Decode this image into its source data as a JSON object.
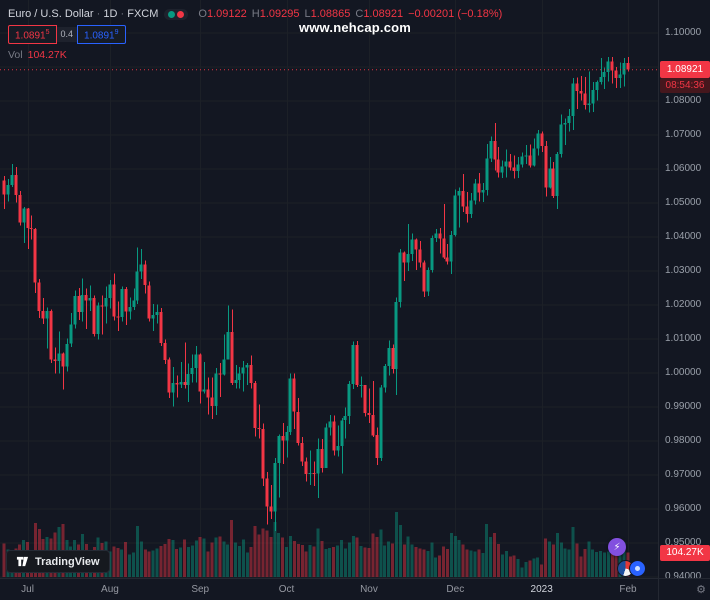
{
  "legend": {
    "symbol": "Euro / U.S. Dollar",
    "separator": "·",
    "interval": "1D",
    "exchange": "FXCM",
    "ohlc": {
      "o_label": "O",
      "o": "1.09122",
      "h_label": "H",
      "h": "1.09295",
      "l_label": "L",
      "l": "1.08865",
      "c_label": "C",
      "c": "1.08921",
      "change": "−0.00201 (−0.18%)"
    },
    "bid": {
      "main": "1.0891",
      "sup": "5"
    },
    "spread": "0.4",
    "ask": {
      "main": "1.0891",
      "sup": "9"
    },
    "vol_label": "Vol",
    "vol_value": "104.27K"
  },
  "watermark": "www.nehcap.com",
  "badges": {
    "price": "1.08921",
    "countdown": "08:54:36",
    "volume": "104.27K"
  },
  "footer": {
    "logo_text": "TradingView"
  },
  "icons": {
    "lightning": "⚡",
    "gear": "⚙"
  },
  "colors": {
    "up": "#089981",
    "down": "#f23645",
    "blue": "#2962ff",
    "purple": "#8250df"
  },
  "chart_data": {
    "type": "candlestick+volume",
    "title": "Euro / U.S. Dollar · 1D · FXCM",
    "legend_position": "top-left",
    "grid": true,
    "ylim": [
      0.94,
      1.1
    ],
    "y_ticks": [
      "1.10000",
      "1.09000",
      "1.08000",
      "1.07000",
      "1.06000",
      "1.05000",
      "1.04000",
      "1.03000",
      "1.02000",
      "1.01000",
      "1.00000",
      "0.99000",
      "0.98000",
      "0.97000",
      "0.96000",
      "0.95000",
      "0.94000"
    ],
    "x_ticks": [
      {
        "label": "Jul",
        "i": 6
      },
      {
        "label": "Aug",
        "i": 27
      },
      {
        "label": "Sep",
        "i": 50
      },
      {
        "label": "Oct",
        "i": 72
      },
      {
        "label": "Nov",
        "i": 93
      },
      {
        "label": "Dec",
        "i": 115
      },
      {
        "label": "2023",
        "i": 137,
        "year": true
      },
      {
        "label": "Feb",
        "i": 159
      }
    ],
    "last_price": 1.08921,
    "last_volume": 104.27,
    "volume_scale_max": 320,
    "up_color": "#089981",
    "down_color": "#f23645",
    "candles_format": [
      "open",
      "high",
      "low",
      "close",
      "volume_k"
    ],
    "candles": [
      [
        1.0566,
        1.058,
        1.0483,
        1.0525,
        142
      ],
      [
        1.0525,
        1.0571,
        1.0504,
        1.0553,
        118
      ],
      [
        1.0553,
        1.0615,
        1.0547,
        1.0583,
        104
      ],
      [
        1.0583,
        1.0606,
        1.0502,
        1.0523,
        121
      ],
      [
        1.0523,
        1.0536,
        1.0434,
        1.0442,
        139
      ],
      [
        1.0442,
        1.0488,
        1.0382,
        1.0484,
        158
      ],
      [
        1.0484,
        1.0486,
        1.0365,
        1.0426,
        149
      ],
      [
        1.0426,
        1.0463,
        1.0393,
        1.0423,
        87
      ],
      [
        1.0423,
        1.0426,
        1.0235,
        1.0266,
        231
      ],
      [
        1.0266,
        1.0276,
        1.0162,
        1.0183,
        204
      ],
      [
        1.0183,
        1.0221,
        1.0144,
        1.016,
        162
      ],
      [
        1.016,
        1.0192,
        1.0072,
        1.0183,
        171
      ],
      [
        1.0183,
        1.0187,
        1.003,
        1.004,
        165
      ],
      [
        1.004,
        1.0075,
        0.9998,
        1.0036,
        189
      ],
      [
        1.0036,
        1.0122,
        0.9998,
        1.0058,
        214
      ],
      [
        1.0058,
        1.006,
        0.9952,
        1.0019,
        226
      ],
      [
        1.0019,
        1.0101,
        1.0005,
        1.0086,
        158
      ],
      [
        1.0086,
        1.0176,
        1.0076,
        1.0142,
        131
      ],
      [
        1.0142,
        1.0242,
        1.0131,
        1.0227,
        157
      ],
      [
        1.0227,
        1.025,
        1.0156,
        1.018,
        139
      ],
      [
        1.018,
        1.0278,
        1.0151,
        1.0229,
        183
      ],
      [
        1.0229,
        1.0249,
        1.013,
        1.0213,
        141
      ],
      [
        1.0213,
        1.0258,
        1.0182,
        1.022,
        102
      ],
      [
        1.022,
        1.0228,
        1.0108,
        1.0115,
        127
      ],
      [
        1.0115,
        1.0207,
        1.0098,
        1.0199,
        168
      ],
      [
        1.0199,
        1.0228,
        1.0113,
        1.0196,
        146
      ],
      [
        1.0196,
        1.0254,
        1.0145,
        1.0221,
        152
      ],
      [
        1.0221,
        1.0274,
        1.019,
        1.0261,
        109
      ],
      [
        1.0261,
        1.0293,
        1.0155,
        1.0166,
        131
      ],
      [
        1.0166,
        1.021,
        1.0123,
        1.0165,
        124
      ],
      [
        1.0165,
        1.0254,
        1.0152,
        1.0247,
        118
      ],
      [
        1.0247,
        1.0253,
        1.0141,
        1.0181,
        149
      ],
      [
        1.0181,
        1.0222,
        1.0158,
        1.0194,
        96
      ],
      [
        1.0194,
        1.0248,
        1.0185,
        1.0213,
        104
      ],
      [
        1.0213,
        1.0369,
        1.0203,
        1.0298,
        218
      ],
      [
        1.0298,
        1.0365,
        1.0276,
        1.0319,
        151
      ],
      [
        1.0319,
        1.0331,
        1.0234,
        1.0258,
        117
      ],
      [
        1.0258,
        1.0269,
        1.0152,
        1.016,
        108
      ],
      [
        1.016,
        1.0203,
        1.0124,
        1.0171,
        113
      ],
      [
        1.0171,
        1.0202,
        1.0145,
        1.018,
        122
      ],
      [
        1.018,
        1.0191,
        1.008,
        1.0088,
        133
      ],
      [
        1.0088,
        1.0098,
        1.0026,
        1.0039,
        141
      ],
      [
        1.0039,
        1.0046,
        0.9926,
        0.9942,
        162
      ],
      [
        0.9942,
        1.0018,
        0.9901,
        0.997,
        158
      ],
      [
        0.997,
        0.9992,
        0.9928,
        0.9966,
        119
      ],
      [
        0.9966,
        1.0033,
        0.9956,
        0.9974,
        126
      ],
      [
        0.9974,
        1.009,
        0.9954,
        0.9965,
        161
      ],
      [
        0.9965,
        1.0028,
        0.9914,
        0.9997,
        128
      ],
      [
        0.9997,
        1.0055,
        0.9972,
        1.0014,
        134
      ],
      [
        1.0014,
        1.0079,
        0.9972,
        1.0054,
        156
      ],
      [
        1.0054,
        1.0058,
        0.991,
        0.9945,
        171
      ],
      [
        0.9945,
        1.0033,
        0.9939,
        0.9952,
        164
      ],
      [
        0.9952,
        0.9987,
        0.9878,
        0.9928,
        108
      ],
      [
        0.9928,
        0.9987,
        0.9864,
        0.9903,
        147
      ],
      [
        0.9903,
        1.0015,
        0.9876,
        0.9998,
        169
      ],
      [
        0.9998,
        1.0029,
        0.993,
        0.9995,
        172
      ],
      [
        0.9995,
        1.0113,
        0.9993,
        1.004,
        151
      ],
      [
        1.004,
        1.0198,
        1.004,
        1.012,
        139
      ],
      [
        1.012,
        1.0187,
        0.9964,
        0.997,
        243
      ],
      [
        0.997,
        1.0023,
        0.9955,
        0.9979,
        148
      ],
      [
        0.9979,
        1.0018,
        0.9955,
        0.9998,
        132
      ],
      [
        0.9998,
        1.0036,
        0.9945,
        1.0016,
        159
      ],
      [
        1.0016,
        1.0029,
        0.9965,
        1.0023,
        104
      ],
      [
        1.0023,
        1.0051,
        0.9955,
        0.997,
        129
      ],
      [
        0.997,
        0.9976,
        0.9813,
        0.9838,
        217
      ],
      [
        0.9838,
        0.9908,
        0.9807,
        0.9835,
        181
      ],
      [
        0.9835,
        0.9852,
        0.9667,
        0.969,
        206
      ],
      [
        0.969,
        0.9709,
        0.9554,
        0.9608,
        198
      ],
      [
        0.9608,
        0.9671,
        0.957,
        0.9593,
        171
      ],
      [
        0.9593,
        0.975,
        0.9536,
        0.9735,
        234
      ],
      [
        0.9735,
        0.9819,
        0.9634,
        0.9815,
        187
      ],
      [
        0.9815,
        0.9853,
        0.9733,
        0.9801,
        169
      ],
      [
        0.9801,
        0.9844,
        0.9751,
        0.9826,
        128
      ],
      [
        0.9826,
        0.9999,
        0.9818,
        0.9984,
        176
      ],
      [
        0.9984,
        0.9999,
        0.9835,
        0.9886,
        153
      ],
      [
        0.9886,
        0.9927,
        0.9787,
        0.9794,
        141
      ],
      [
        0.9794,
        0.9812,
        0.9727,
        0.974,
        137
      ],
      [
        0.974,
        0.9752,
        0.9681,
        0.9703,
        109
      ],
      [
        0.9703,
        0.9772,
        0.967,
        0.9706,
        136
      ],
      [
        0.9706,
        0.9739,
        0.9668,
        0.9704,
        131
      ],
      [
        0.9704,
        0.9807,
        0.9632,
        0.9777,
        208
      ],
      [
        0.9777,
        0.9806,
        0.9708,
        0.9721,
        154
      ],
      [
        0.9721,
        0.9851,
        0.972,
        0.984,
        119
      ],
      [
        0.984,
        0.9876,
        0.9816,
        0.9858,
        123
      ],
      [
        0.9858,
        0.9875,
        0.9757,
        0.9772,
        127
      ],
      [
        0.9772,
        0.9845,
        0.9755,
        0.9785,
        134
      ],
      [
        0.9785,
        0.9868,
        0.9705,
        0.9861,
        158
      ],
      [
        0.9861,
        0.9899,
        0.9807,
        0.9874,
        121
      ],
      [
        0.9874,
        0.9977,
        0.985,
        0.9968,
        147
      ],
      [
        0.9968,
        1.0093,
        0.9953,
        1.0082,
        174
      ],
      [
        1.0082,
        1.0094,
        0.9959,
        0.9964,
        168
      ],
      [
        0.9964,
        0.999,
        0.9928,
        0.9965,
        132
      ],
      [
        0.9965,
        0.9965,
        0.9872,
        0.9882,
        126
      ],
      [
        0.9882,
        0.9954,
        0.9853,
        0.9876,
        123
      ],
      [
        0.9876,
        0.9976,
        0.9812,
        0.9817,
        186
      ],
      [
        0.9817,
        0.984,
        0.973,
        0.975,
        171
      ],
      [
        0.975,
        0.9965,
        0.9741,
        0.9957,
        203
      ],
      [
        0.9957,
        1.0026,
        0.9942,
        1.002,
        134
      ],
      [
        1.002,
        1.0096,
        0.9993,
        1.0074,
        151
      ],
      [
        1.0074,
        1.0084,
        0.9998,
        1.0011,
        142
      ],
      [
        1.0011,
        1.0222,
        0.9936,
        1.0209,
        278
      ],
      [
        1.0209,
        1.0364,
        1.0192,
        1.0354,
        221
      ],
      [
        1.0354,
        1.0357,
        1.0271,
        1.0325,
        139
      ],
      [
        1.0325,
        1.0438,
        1.03,
        1.035,
        172
      ],
      [
        1.035,
        1.041,
        1.033,
        1.0393,
        138
      ],
      [
        1.0393,
        1.0395,
        1.0303,
        1.0363,
        129
      ],
      [
        1.0363,
        1.0388,
        1.031,
        1.0325,
        121
      ],
      [
        1.0325,
        1.0331,
        1.0223,
        1.024,
        117
      ],
      [
        1.024,
        1.031,
        1.0226,
        1.0303,
        111
      ],
      [
        1.0303,
        1.0405,
        1.0296,
        1.0397,
        148
      ],
      [
        1.0397,
        1.0424,
        1.0386,
        1.041,
        84
      ],
      [
        1.041,
        1.0427,
        1.0351,
        1.0395,
        92
      ],
      [
        1.0395,
        1.0497,
        1.0336,
        1.0339,
        131
      ],
      [
        1.0339,
        1.0379,
        1.0319,
        1.0328,
        119
      ],
      [
        1.0328,
        1.0418,
        1.0291,
        1.0406,
        187
      ],
      [
        1.0406,
        1.0539,
        1.0401,
        1.0522,
        176
      ],
      [
        1.0522,
        1.0545,
        1.0428,
        1.0535,
        158
      ],
      [
        1.0535,
        1.0585,
        1.0474,
        1.049,
        139
      ],
      [
        1.049,
        1.0532,
        1.0443,
        1.0468,
        117
      ],
      [
        1.0468,
        1.053,
        1.0456,
        1.0507,
        113
      ],
      [
        1.0507,
        1.057,
        1.0495,
        1.0557,
        109
      ],
      [
        1.0557,
        1.0588,
        1.0505,
        1.0531,
        118
      ],
      [
        1.0531,
        1.0559,
        1.0503,
        1.0538,
        102
      ],
      [
        1.0538,
        1.0673,
        1.0522,
        1.0631,
        226
      ],
      [
        1.0631,
        1.0695,
        1.062,
        1.0683,
        171
      ],
      [
        1.0683,
        1.0736,
        1.0595,
        1.0628,
        188
      ],
      [
        1.0628,
        1.0664,
        1.0575,
        1.059,
        141
      ],
      [
        1.059,
        1.0625,
        1.0574,
        1.0607,
        96
      ],
      [
        1.0607,
        1.0658,
        1.0575,
        1.0622,
        112
      ],
      [
        1.0622,
        1.0644,
        1.0596,
        1.0604,
        88
      ],
      [
        1.0604,
        1.064,
        1.0572,
        1.0594,
        91
      ],
      [
        1.0594,
        1.0636,
        1.0573,
        1.0613,
        76
      ],
      [
        1.0613,
        1.0648,
        1.0604,
        1.0637,
        41
      ],
      [
        1.0637,
        1.067,
        1.0615,
        1.064,
        63
      ],
      [
        1.064,
        1.0672,
        1.0604,
        1.061,
        71
      ],
      [
        1.061,
        1.069,
        1.0608,
        1.0661,
        78
      ],
      [
        1.0661,
        1.0714,
        1.0639,
        1.0705,
        83
      ],
      [
        1.0705,
        1.0711,
        1.065,
        1.0668,
        54
      ],
      [
        1.0668,
        1.0683,
        1.0519,
        1.0546,
        164
      ],
      [
        1.0546,
        1.0635,
        1.0543,
        1.0602,
        151
      ],
      [
        1.0602,
        1.0621,
        1.0515,
        1.0521,
        139
      ],
      [
        1.0521,
        1.065,
        1.0483,
        1.0644,
        188
      ],
      [
        1.0644,
        1.0761,
        1.0634,
        1.0731,
        147
      ],
      [
        1.0731,
        1.0748,
        1.067,
        1.0735,
        121
      ],
      [
        1.0735,
        1.0776,
        1.0711,
        1.0756,
        118
      ],
      [
        1.0756,
        1.0868,
        1.0714,
        1.0852,
        213
      ],
      [
        1.0852,
        1.0869,
        1.0776,
        1.083,
        142
      ],
      [
        1.083,
        1.0874,
        1.0802,
        1.0822,
        87
      ],
      [
        1.0822,
        1.087,
        1.0775,
        1.0788,
        119
      ],
      [
        1.0788,
        1.0887,
        1.0766,
        1.0793,
        151
      ],
      [
        1.0793,
        1.0856,
        1.0767,
        1.0832,
        118
      ],
      [
        1.0832,
        1.086,
        1.0801,
        1.0856,
        106
      ],
      [
        1.0856,
        1.0927,
        1.0848,
        1.087,
        112
      ],
      [
        1.087,
        1.0898,
        1.0835,
        1.0886,
        104
      ],
      [
        1.0886,
        1.0929,
        1.0857,
        1.0916,
        109
      ],
      [
        1.0916,
        1.093,
        1.0852,
        1.089,
        116
      ],
      [
        1.089,
        1.09,
        1.0838,
        1.0868,
        98
      ],
      [
        1.0868,
        1.0913,
        1.0838,
        1.0878,
        101
      ],
      [
        1.0878,
        1.0926,
        1.0843,
        1.09122,
        147
      ],
      [
        1.09122,
        1.09295,
        1.08865,
        1.08921,
        104.27
      ]
    ]
  }
}
